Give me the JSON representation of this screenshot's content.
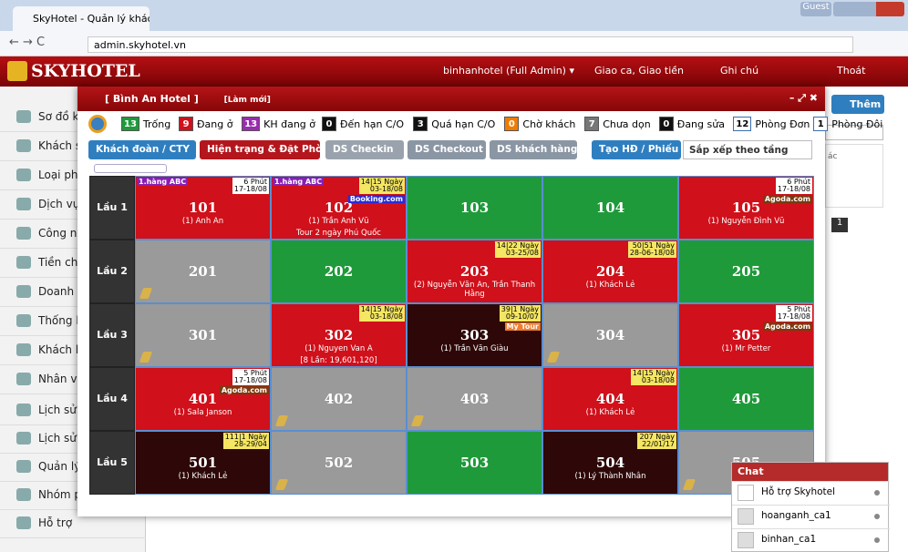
{
  "browser": {
    "tab_title": "SkyHotel - Quản lý khách",
    "url": "admin.skyhotel.vn",
    "guest": "Guest"
  },
  "header": {
    "logo": "SKYHOTEL",
    "user": "binhanhotel (Full Admin) ▾",
    "shift": "Giao ca, Giao tiền",
    "notes": "Ghi chú",
    "logout": "Thoát"
  },
  "sidebar": [
    "Sơ đồ kh",
    "Khách sạ",
    "Loại phò",
    "Dịch vụ ă",
    "Công nợ",
    "Tiền chi",
    "Doanh th",
    "Thống kê",
    "Khách hà",
    "Nhân viê",
    "Lịch sử g",
    "Lịch sử g",
    "Quản lý",
    "Nhóm ph",
    "Hỗ trợ"
  ],
  "background": {
    "add_button": "Thêm",
    "column": "ác",
    "page": "1"
  },
  "modal": {
    "title": "[ Bình An Hotel ]",
    "refresh": "[Làm mới]",
    "legend": [
      {
        "count": "13",
        "label": "Trống",
        "color": "#1f9a3a"
      },
      {
        "count": "9",
        "label": "Đang ở",
        "color": "#d0101a"
      },
      {
        "count": "13",
        "label": "KH đang ở",
        "color": "#9b2bb0"
      },
      {
        "count": "0",
        "label": "Đến hạn C/O",
        "color": "#111111"
      },
      {
        "count": "3",
        "label": "Quá hạn C/O",
        "color": "#111111"
      },
      {
        "count": "0",
        "label": "Chờ khách",
        "color": "#f07c00"
      },
      {
        "count": "7",
        "label": "Chưa dọn",
        "color": "#777777"
      },
      {
        "count": "0",
        "label": "Đang sửa",
        "color": "#111111"
      },
      {
        "count": "12",
        "label": "Phòng Đơn",
        "color": "#ffffff"
      },
      {
        "count": "1",
        "label": "Phòng Đôi",
        "color": "#ffffff"
      }
    ],
    "buttons": [
      {
        "label": "Khách đoàn / CTY",
        "color": "#2f7fc0"
      },
      {
        "label": "Hiện trạng & Đặt Phòng",
        "color": "#b3161c"
      },
      {
        "label": "DS Checkin",
        "color": "#9aa3ad"
      },
      {
        "label": "DS Checkout",
        "color": "#8a96a3"
      },
      {
        "label": "DS khách hàng",
        "color": "#8a96a3"
      },
      {
        "label": "Tạo HĐ / Phiếu",
        "color": "#2f7fc0"
      }
    ],
    "sort": "Sắp xếp theo tầng",
    "floors": [
      {
        "label": "Lầu 1",
        "rooms": [
          {
            "number": "101",
            "status": "occupied",
            "tag": "1.hàng ABC",
            "time": [
              "6 Phút",
              "17-18/08"
            ],
            "time_color": "#ffffff",
            "guest": "(1) Anh An"
          },
          {
            "number": "102",
            "status": "occupied",
            "tag": "1.hàng ABC",
            "time": [
              "14|15 Ngày",
              "03-18/08"
            ],
            "time_color": "#f5e663",
            "badge": {
              "text": "Booking.com",
              "color": "#2b2bd6"
            },
            "guest": "(1) Trần Anh Vũ",
            "note": "Tour 2 ngày Phú Quốc"
          },
          {
            "number": "103",
            "status": "vacant"
          },
          {
            "number": "104",
            "status": "vacant"
          },
          {
            "number": "105",
            "status": "occupied",
            "time": [
              "6 Phút",
              "17-18/08"
            ],
            "time_color": "#ffffff",
            "badge": {
              "text": "Agoda.com",
              "color": "#7a3a10"
            },
            "guest": "(1) Nguyễn Đình Vũ"
          }
        ]
      },
      {
        "label": "Lầu 2",
        "rooms": [
          {
            "number": "201",
            "status": "dirty"
          },
          {
            "number": "202",
            "status": "vacant"
          },
          {
            "number": "203",
            "status": "occupied",
            "time": [
              "14|22 Ngày",
              "03-25/08"
            ],
            "time_color": "#f5e663",
            "guest": "(2) Nguyễn Văn An, Trần Thanh Hằng"
          },
          {
            "number": "204",
            "status": "occupied",
            "time": [
              "50|51 Ngày",
              "28-06-18/08"
            ],
            "time_color": "#f5e663",
            "guest": "(1) Khách Lẻ"
          },
          {
            "number": "205",
            "status": "vacant"
          }
        ]
      },
      {
        "label": "Lầu 3",
        "rooms": [
          {
            "number": "301",
            "status": "dirty"
          },
          {
            "number": "302",
            "status": "occupied",
            "time": [
              "14|15 Ngày",
              "03-18/08"
            ],
            "time_color": "#f5e663",
            "guest": "(1) Nguyen Van A",
            "note": "[8 Lần: 19,601,120]"
          },
          {
            "number": "303",
            "status": "overdue",
            "time": [
              "39|1 Ngày",
              "09-10/07"
            ],
            "time_color": "#f5e663",
            "badge": {
              "text": "My Tour",
              "color": "#f07c30"
            },
            "guest": "(1) Trần Văn Giàu"
          },
          {
            "number": "304",
            "status": "dirty"
          },
          {
            "number": "305",
            "status": "occupied",
            "time": [
              "5 Phút",
              "17-18/08"
            ],
            "time_color": "#ffffff",
            "badge": {
              "text": "Agoda.com",
              "color": "#7a3a10"
            },
            "guest": "(1) Mr Petter"
          }
        ]
      },
      {
        "label": "Lầu 4",
        "rooms": [
          {
            "number": "401",
            "status": "occupied",
            "time": [
              "5 Phút",
              "17-18/08"
            ],
            "time_color": "#ffffff",
            "badge": {
              "text": "Agoda.com",
              "color": "#7a3a10"
            },
            "guest": "(1) Sala Janson"
          },
          {
            "number": "402",
            "status": "dirty"
          },
          {
            "number": "403",
            "status": "dirty"
          },
          {
            "number": "404",
            "status": "occupied",
            "time": [
              "14|15 Ngày",
              "03-18/08"
            ],
            "time_color": "#f5e663",
            "guest": "(1) Khách Lẻ"
          },
          {
            "number": "405",
            "status": "vacant"
          }
        ]
      },
      {
        "label": "Lầu 5",
        "rooms": [
          {
            "number": "501",
            "status": "overdue",
            "time": [
              "111|1 Ngày",
              "28-29/04"
            ],
            "time_color": "#f5e663",
            "guest": "(1) Khách Lẻ"
          },
          {
            "number": "502",
            "status": "dirty"
          },
          {
            "number": "503",
            "status": "vacant"
          },
          {
            "number": "504",
            "status": "overdue",
            "time": [
              "207 Ngày",
              "22/01/17"
            ],
            "time_color": "#f5e663",
            "guest": "(1) Lý Thành Nhân"
          },
          {
            "number": "505",
            "status": "dirty"
          }
        ]
      }
    ]
  },
  "chat": {
    "title": "Chat",
    "items": [
      "Hỗ trợ Skyhotel",
      "hoanganh_ca1",
      "binhan_ca1"
    ]
  }
}
